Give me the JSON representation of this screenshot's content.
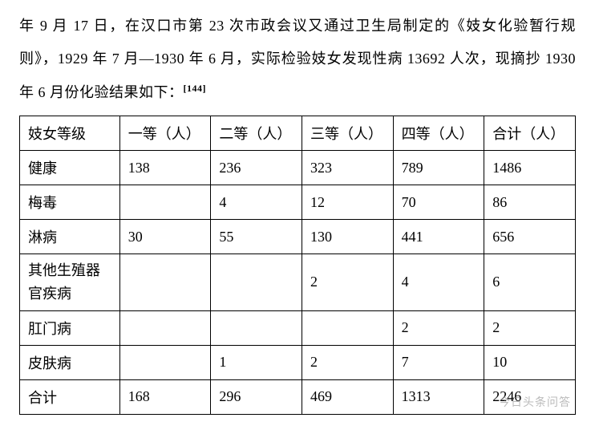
{
  "paragraph": {
    "text_part1": "年 9 月 17 日，在汉口市第 23 次市政会议又通过卫生局制定的《妓女化验暂行规则》，1929 年 7 月—1930 年 6 月，实际检验妓女发现性病 13692 人次，现摘抄 1930 年 6 月份化验结果如下：",
    "citation": "[144]"
  },
  "table": {
    "type": "table",
    "border_color": "#000000",
    "background_color": "#ffffff",
    "text_color": "#000000",
    "font_size": 18,
    "columns": [
      {
        "label": "妓女等级",
        "width_pct": 18
      },
      {
        "label": "一等（人）",
        "width_pct": 16.4
      },
      {
        "label": "二等（人）",
        "width_pct": 16.4
      },
      {
        "label": "三等（人）",
        "width_pct": 16.4
      },
      {
        "label": "四等（人）",
        "width_pct": 16.4
      },
      {
        "label": "合计（人）",
        "width_pct": 16.4
      }
    ],
    "rows": [
      {
        "label": "健康",
        "cells": [
          "138",
          "236",
          "323",
          "789",
          "1486"
        ]
      },
      {
        "label": "梅毒",
        "cells": [
          "",
          "4",
          "12",
          "70",
          "86"
        ]
      },
      {
        "label": "淋病",
        "cells": [
          "30",
          "55",
          "130",
          "441",
          "656"
        ]
      },
      {
        "label": "其他生殖器官疾病",
        "cells": [
          "",
          "",
          "2",
          "4",
          "6"
        ],
        "multiline": true
      },
      {
        "label": "肛门病",
        "cells": [
          "",
          "",
          "",
          "2",
          "2"
        ]
      },
      {
        "label": "皮肤病",
        "cells": [
          "",
          "1",
          "2",
          "7",
          "10"
        ]
      },
      {
        "label": "合计",
        "cells": [
          "168",
          "296",
          "469",
          "1313",
          "2246"
        ]
      }
    ]
  },
  "watermark": "今日头条问答"
}
